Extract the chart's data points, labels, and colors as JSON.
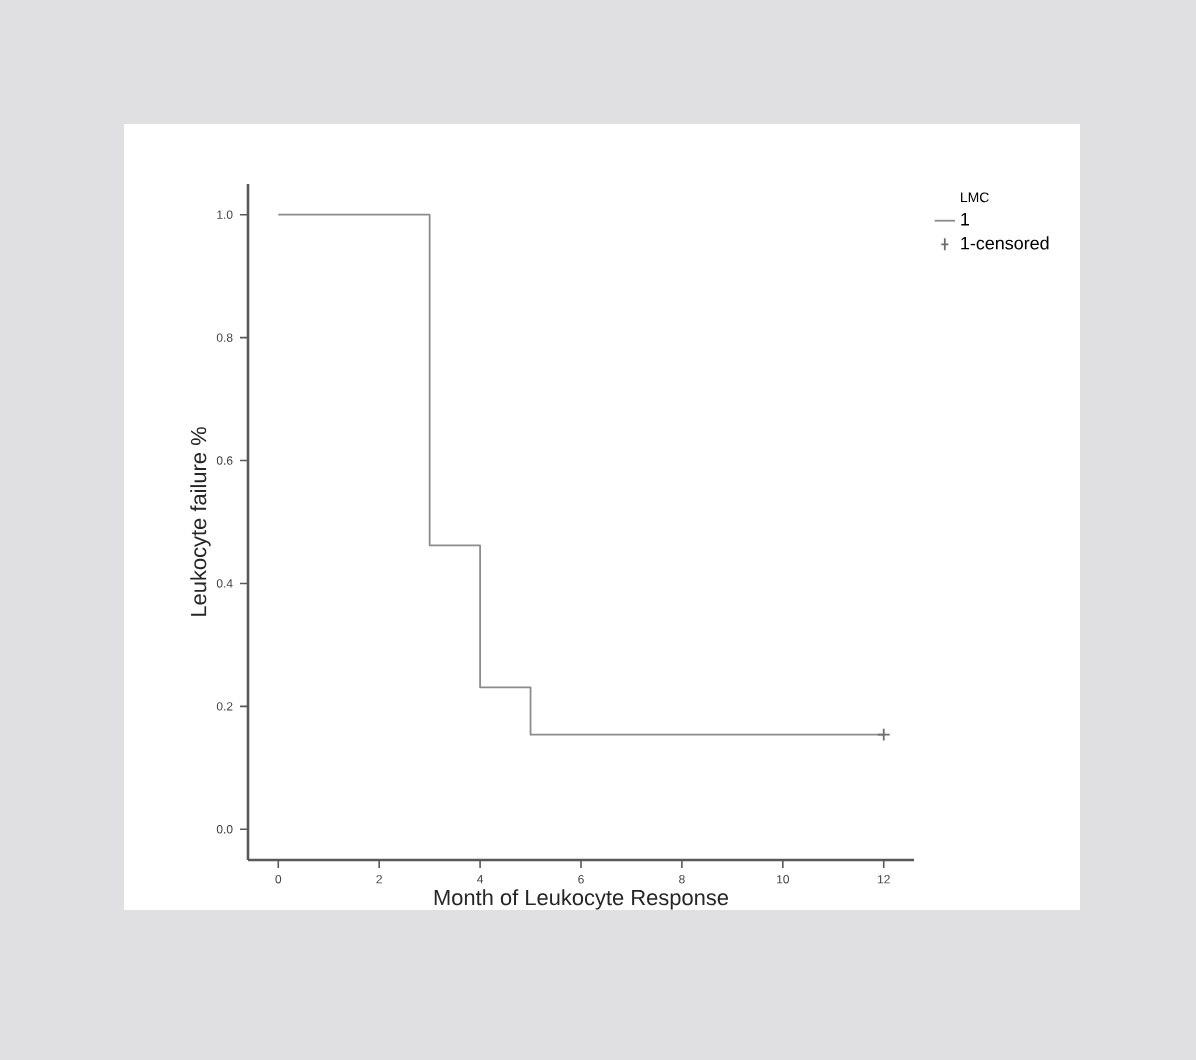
{
  "chart_data": {
    "type": "step",
    "xlabel": "Month of Leukocyte Response",
    "ylabel": "Leukocyte failure %",
    "legend_title": "LMC",
    "xlim": [
      -0.6,
      12.6
    ],
    "ylim": [
      -0.05,
      1.05
    ],
    "xticks": [
      0,
      2,
      4,
      6,
      8,
      10,
      12
    ],
    "yticks": [
      {
        "value": 0,
        "label": "0.0"
      },
      {
        "value": 0.2,
        "label": "0.2"
      },
      {
        "value": 0.4,
        "label": "0.4"
      },
      {
        "value": 0.6,
        "label": "0.6"
      },
      {
        "value": 0.8,
        "label": "0.8"
      },
      {
        "value": 1,
        "label": "1.0"
      }
    ],
    "legend": "top right",
    "series": [
      {
        "name": "1",
        "color": "#8c8c8c",
        "marker": "none",
        "x": [
          0,
          3,
          4,
          5,
          12
        ],
        "values": [
          1.0,
          0.462,
          0.231,
          0.154,
          0.154
        ]
      },
      {
        "name": "1-censored",
        "color": "#6e6e6e",
        "type": "scatter",
        "marker": "cross",
        "x": [
          12
        ],
        "values": [
          0.154
        ]
      }
    ]
  }
}
